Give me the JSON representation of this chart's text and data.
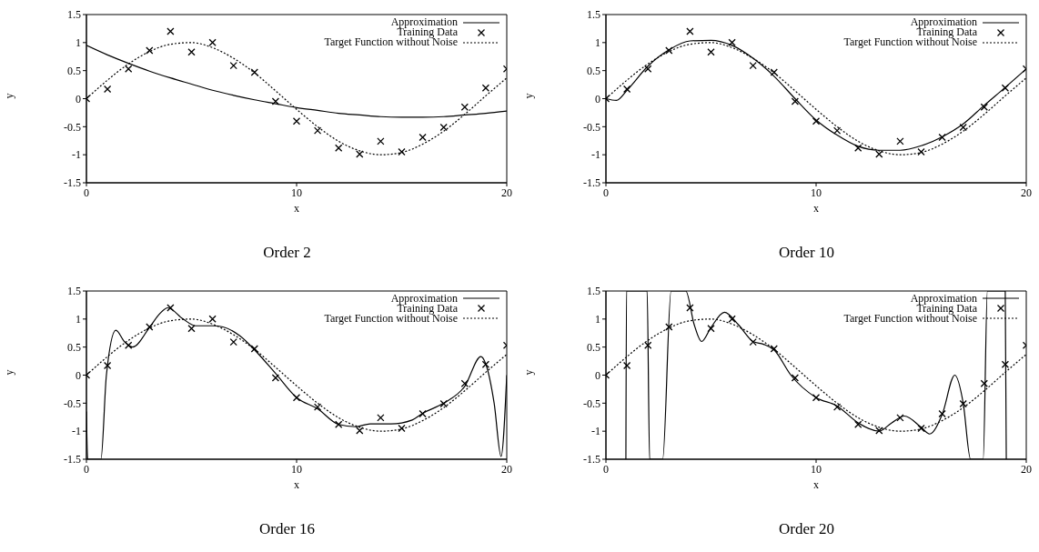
{
  "chart_data": [
    {
      "type": "line",
      "title": "Order 2",
      "xlabel": "x",
      "ylabel": "y",
      "xlim": [
        0,
        20
      ],
      "xticks": [
        0,
        10,
        20
      ],
      "ylim": [
        -1.5,
        1.5
      ],
      "yticks": [
        -1.5,
        -1,
        -0.5,
        0,
        0.5,
        1,
        1.5
      ],
      "legend": "top right",
      "series": [
        {
          "name": "Approximation",
          "type": "line",
          "color": "#000000",
          "line_style": "solid",
          "x": [
            0,
            1,
            2,
            3,
            4,
            5,
            6,
            7,
            8,
            9,
            10,
            11,
            12,
            13,
            14,
            15,
            16,
            17,
            18,
            19,
            20
          ],
          "values": [
            0.95,
            0.78,
            0.63,
            0.49,
            0.37,
            0.26,
            0.15,
            0.06,
            -0.02,
            -0.09,
            -0.16,
            -0.21,
            -0.26,
            -0.29,
            -0.32,
            -0.33,
            -0.33,
            -0.32,
            -0.29,
            -0.26,
            -0.22
          ]
        },
        {
          "name": "Training Data",
          "type": "scatter",
          "color": "#000000",
          "marker": "cross",
          "x": [
            0,
            1,
            2,
            3,
            4,
            5,
            6,
            7,
            8,
            9,
            10,
            11,
            12,
            13,
            14,
            15,
            16,
            17,
            18,
            19,
            20
          ],
          "values": [
            0,
            0.17,
            0.53,
            0.86,
            1.2,
            0.83,
            1.0,
            0.59,
            0.47,
            -0.05,
            -0.4,
            -0.57,
            -0.88,
            -0.99,
            -0.76,
            -0.95,
            -0.69,
            -0.51,
            -0.15,
            0.19,
            0.53
          ]
        },
        {
          "name": "Target Function without Noise",
          "type": "line",
          "color": "#000000",
          "line_style": "dotted",
          "x": [
            0,
            1,
            2,
            3,
            4,
            5,
            6,
            7,
            8,
            9,
            10,
            11,
            12,
            13,
            14,
            15,
            16,
            17,
            18,
            19,
            20
          ],
          "values": [
            0,
            0.33,
            0.62,
            0.84,
            0.97,
            1.0,
            0.91,
            0.72,
            0.46,
            0.14,
            -0.19,
            -0.5,
            -0.76,
            -0.93,
            -1.0,
            -0.96,
            -0.81,
            -0.58,
            -0.28,
            0.05,
            0.37
          ]
        }
      ]
    },
    {
      "type": "line",
      "title": "Order 10",
      "xlabel": "x",
      "ylabel": "y",
      "xlim": [
        0,
        20
      ],
      "xticks": [
        0,
        10,
        20
      ],
      "ylim": [
        -1.5,
        1.5
      ],
      "yticks": [
        -1.5,
        -1,
        -0.5,
        0,
        0.5,
        1,
        1.5
      ],
      "legend": "top right",
      "series": [
        {
          "name": "Approximation",
          "type": "line",
          "color": "#000000",
          "line_style": "solid",
          "x": [
            0,
            0.5,
            1,
            2,
            3,
            4,
            5,
            6,
            7,
            8,
            9,
            10,
            11,
            12,
            13,
            14,
            15,
            16,
            17,
            18,
            19,
            20
          ],
          "values": [
            0,
            -0.03,
            0.15,
            0.58,
            0.87,
            1.03,
            1.04,
            0.95,
            0.72,
            0.4,
            0,
            -0.38,
            -0.65,
            -0.85,
            -0.92,
            -0.92,
            -0.84,
            -0.68,
            -0.45,
            -0.12,
            0.2,
            0.53
          ]
        },
        {
          "name": "Training Data",
          "type": "scatter",
          "color": "#000000",
          "marker": "cross",
          "x": [
            0,
            1,
            2,
            3,
            4,
            5,
            6,
            7,
            8,
            9,
            10,
            11,
            12,
            13,
            14,
            15,
            16,
            17,
            18,
            19,
            20
          ],
          "values": [
            0,
            0.17,
            0.53,
            0.86,
            1.2,
            0.83,
            1.0,
            0.59,
            0.47,
            -0.05,
            -0.4,
            -0.57,
            -0.88,
            -0.99,
            -0.76,
            -0.95,
            -0.69,
            -0.51,
            -0.15,
            0.19,
            0.53
          ]
        },
        {
          "name": "Target Function without Noise",
          "type": "line",
          "color": "#000000",
          "line_style": "dotted",
          "x": [
            0,
            1,
            2,
            3,
            4,
            5,
            6,
            7,
            8,
            9,
            10,
            11,
            12,
            13,
            14,
            15,
            16,
            17,
            18,
            19,
            20
          ],
          "values": [
            0,
            0.33,
            0.62,
            0.84,
            0.97,
            1.0,
            0.91,
            0.72,
            0.46,
            0.14,
            -0.19,
            -0.5,
            -0.76,
            -0.93,
            -1.0,
            -0.96,
            -0.81,
            -0.58,
            -0.28,
            0.05,
            0.37
          ]
        }
      ]
    },
    {
      "type": "line",
      "title": "Order 16",
      "xlabel": "x",
      "ylabel": "y",
      "xlim": [
        0,
        20
      ],
      "xticks": [
        0,
        10,
        20
      ],
      "ylim": [
        -1.5,
        1.5
      ],
      "yticks": [
        -1.5,
        -1,
        -0.5,
        0,
        0.5,
        1,
        1.5
      ],
      "legend": "top right",
      "series": [
        {
          "name": "Approximation",
          "type": "line",
          "color": "#000000",
          "line_style": "solid",
          "x": [
            0,
            0.06,
            0.69,
            0.95,
            1.4,
            1.8,
            2.2,
            3,
            3.5,
            3.87,
            4.6,
            5.2,
            6,
            6.5,
            7.3,
            8,
            9,
            10,
            11,
            12,
            12.8,
            13.5,
            14.5,
            15.5,
            16,
            17,
            18,
            18.77,
            19,
            19.4,
            19.73,
            20
          ],
          "values": [
            -0.65,
            -1.5,
            -1.5,
            0,
            0.8,
            0.6,
            0.5,
            0.85,
            1.1,
            1.2,
            1.0,
            0.88,
            0.88,
            0.86,
            0.7,
            0.45,
            0.03,
            -0.4,
            -0.6,
            -0.88,
            -0.92,
            -0.87,
            -0.87,
            -0.8,
            -0.68,
            -0.5,
            -0.2,
            0.33,
            0.2,
            -0.5,
            -1.45,
            0
          ]
        },
        {
          "name": "Training Data",
          "type": "scatter",
          "color": "#000000",
          "marker": "cross",
          "x": [
            0,
            1,
            2,
            3,
            4,
            5,
            6,
            7,
            8,
            9,
            10,
            11,
            12,
            13,
            14,
            15,
            16,
            17,
            18,
            19,
            20
          ],
          "values": [
            0,
            0.17,
            0.53,
            0.86,
            1.2,
            0.83,
            1.0,
            0.59,
            0.47,
            -0.05,
            -0.4,
            -0.57,
            -0.88,
            -0.99,
            -0.76,
            -0.95,
            -0.69,
            -0.51,
            -0.15,
            0.19,
            0.53
          ]
        },
        {
          "name": "Target Function without Noise",
          "type": "line",
          "color": "#000000",
          "line_style": "dotted",
          "x": [
            0,
            1,
            2,
            3,
            4,
            5,
            6,
            7,
            8,
            9,
            10,
            11,
            12,
            13,
            14,
            15,
            16,
            17,
            18,
            19,
            20
          ],
          "values": [
            0,
            0.33,
            0.62,
            0.84,
            0.97,
            1.0,
            0.91,
            0.72,
            0.46,
            0.14,
            -0.19,
            -0.5,
            -0.76,
            -0.93,
            -1.0,
            -0.96,
            -0.81,
            -0.58,
            -0.28,
            0.05,
            0.37
          ]
        }
      ]
    },
    {
      "type": "line",
      "title": "Order 20",
      "xlabel": "x",
      "ylabel": "y",
      "xlim": [
        0,
        20
      ],
      "xticks": [
        0,
        10,
        20
      ],
      "ylim": [
        -1.5,
        1.5
      ],
      "yticks": [
        -1.5,
        -1,
        -0.5,
        0,
        0.5,
        1,
        1.5
      ],
      "legend": "top right",
      "series": [
        {
          "name": "Approximation",
          "type": "line",
          "color": "#000000",
          "line_style": "solid",
          "x": [
            0.95,
            0.98,
            1.96,
            2.08,
            2.7,
            3.1,
            3.8,
            4.2,
            4.55,
            5.0,
            5.64,
            6.3,
            7,
            7.5,
            8,
            8.8,
            10,
            11,
            12,
            13,
            13.6,
            14.2,
            15,
            15.4,
            16,
            16.6,
            17,
            17.35,
            17.95,
            18.15,
            19.0,
            19.05
          ],
          "values": [
            -1.5,
            1.5,
            1.5,
            -1.5,
            -1.5,
            1.5,
            1.5,
            0.9,
            0.6,
            0.85,
            1.12,
            0.9,
            0.6,
            0.55,
            0.45,
            0,
            -0.4,
            -0.55,
            -0.85,
            -1.0,
            -0.85,
            -0.73,
            -0.93,
            -1.05,
            -0.7,
            0,
            -0.5,
            -1.5,
            -1.5,
            1.5,
            1.5,
            -1.5
          ]
        },
        {
          "name": "Training Data",
          "type": "scatter",
          "color": "#000000",
          "marker": "cross",
          "x": [
            0,
            1,
            2,
            3,
            4,
            5,
            6,
            7,
            8,
            9,
            10,
            11,
            12,
            13,
            14,
            15,
            16,
            17,
            18,
            19,
            20
          ],
          "values": [
            0,
            0.17,
            0.53,
            0.86,
            1.2,
            0.83,
            1.0,
            0.59,
            0.47,
            -0.05,
            -0.4,
            -0.57,
            -0.88,
            -0.99,
            -0.76,
            -0.95,
            -0.69,
            -0.51,
            -0.15,
            0.19,
            0.53
          ]
        },
        {
          "name": "Target Function without Noise",
          "type": "line",
          "color": "#000000",
          "line_style": "dotted",
          "x": [
            0,
            1,
            2,
            3,
            4,
            5,
            6,
            7,
            8,
            9,
            10,
            11,
            12,
            13,
            14,
            15,
            16,
            17,
            18,
            19,
            20
          ],
          "values": [
            0,
            0.33,
            0.62,
            0.84,
            0.97,
            1.0,
            0.91,
            0.72,
            0.46,
            0.14,
            -0.19,
            -0.5,
            -0.76,
            -0.93,
            -1.0,
            -0.96,
            -0.81,
            -0.58,
            -0.28,
            0.05,
            0.37
          ]
        }
      ]
    }
  ]
}
